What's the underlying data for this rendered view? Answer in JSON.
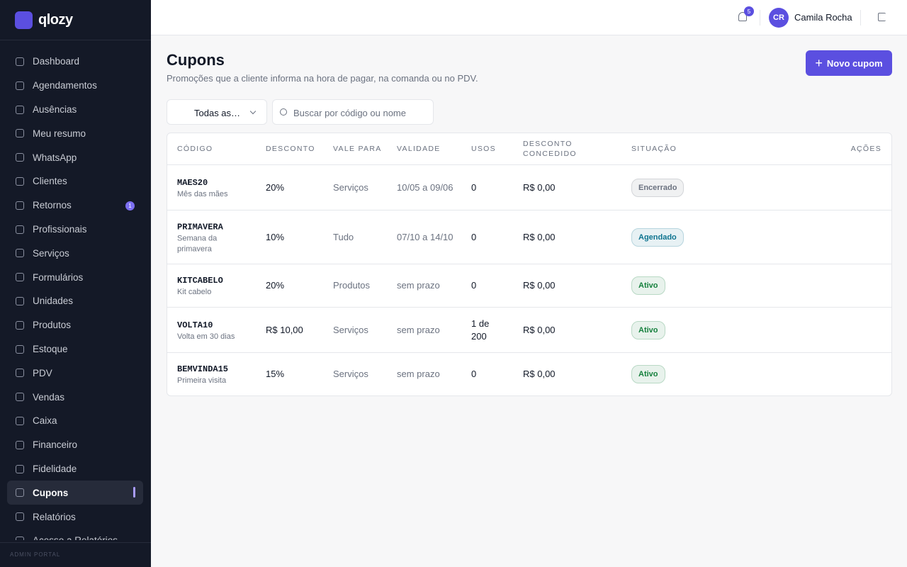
{
  "sidebar": {
    "brand": "qlozy",
    "nav": [
      {
        "label": "Dashboard"
      },
      {
        "label": "Agendamentos"
      },
      {
        "label": "Ausências"
      },
      {
        "label": "Meu resumo"
      },
      {
        "label": "WhatsApp"
      },
      {
        "label": "Clientes"
      },
      {
        "label": "Retornos",
        "badge": "1"
      },
      {
        "label": "Profissionais"
      },
      {
        "label": "Serviços"
      },
      {
        "label": "Formulários"
      },
      {
        "label": "Unidades"
      },
      {
        "label": "Produtos"
      },
      {
        "label": "Estoque"
      },
      {
        "label": "PDV"
      },
      {
        "label": "Vendas"
      },
      {
        "label": "Caixa"
      },
      {
        "label": "Financeiro"
      },
      {
        "label": "Fidelidade"
      },
      {
        "label": "Cupons",
        "active": true
      },
      {
        "label": "Relatórios"
      },
      {
        "label": "Acesso a Relatórios"
      }
    ],
    "footer": "ADMIN PORTAL"
  },
  "header": {
    "notifications": "5",
    "user_initials": "CR",
    "user_name": "Camila Rocha"
  },
  "page": {
    "title": "Cupons",
    "subtitle": "Promoções que a cliente informa na hora de pagar, na comanda ou no PDV.",
    "new_button": "Novo cupom",
    "filter": "Todas as…",
    "search_placeholder": "Buscar por código ou nome"
  },
  "table": {
    "columns": [
      "CÓDIGO",
      "DESCONTO",
      "VALE PARA",
      "VALIDADE",
      "USOS",
      "DESCONTO CONCEDIDO",
      "SITUAÇÃO",
      "AÇÕES"
    ],
    "rows": [
      {
        "code": "MAES20",
        "name": "Mês das mães",
        "discount": "20%",
        "applies_to": "Serviços",
        "validity": "10/05 a 09/06",
        "uses": "0",
        "granted": "R$ 0,00",
        "status": "Encerrado",
        "status_color": "#6b7280"
      },
      {
        "code": "PRIMAVERA",
        "name": "Semana da primavera",
        "discount": "10%",
        "applies_to": "Tudo",
        "validity": "07/10 a 14/10",
        "uses": "0",
        "granted": "R$ 0,00",
        "status": "Agendado",
        "status_color": "#0e7490"
      },
      {
        "code": "KITCABELO",
        "name": "Kit cabelo",
        "discount": "20%",
        "applies_to": "Produtos",
        "validity": "sem prazo",
        "uses": "0",
        "granted": "R$ 0,00",
        "status": "Ativo",
        "status_color": "#15803d"
      },
      {
        "code": "VOLTA10",
        "name": "Volta em 30 dias",
        "discount": "R$ 10,00",
        "applies_to": "Serviços",
        "validity": "sem prazo",
        "uses": "1 de 200",
        "granted": "R$ 0,00",
        "status": "Ativo",
        "status_color": "#15803d"
      },
      {
        "code": "BEMVINDA15",
        "name": "Primeira visita",
        "discount": "15%",
        "applies_to": "Serviços",
        "validity": "sem prazo",
        "uses": "0",
        "granted": "R$ 0,00",
        "status": "Ativo",
        "status_color": "#15803d"
      }
    ]
  }
}
